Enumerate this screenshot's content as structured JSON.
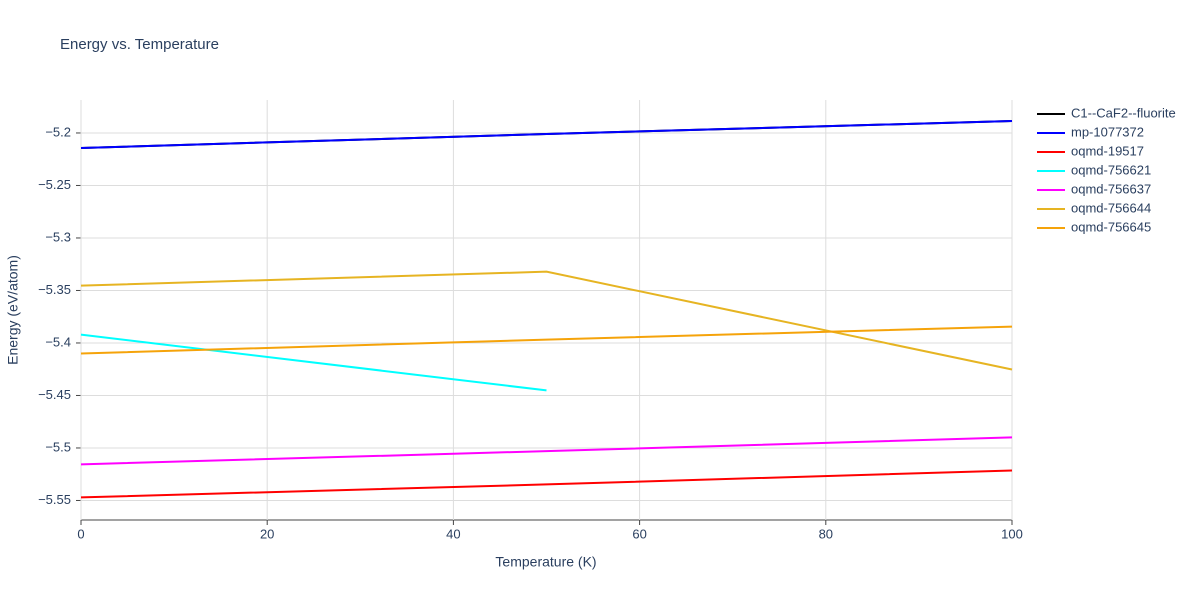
{
  "chart_data": {
    "type": "line",
    "title": "Energy vs. Temperature",
    "x_label": "Temperature (K)",
    "y_label": "Energy (eV/atom)",
    "x": [
      0,
      50,
      100
    ],
    "series": [
      {
        "name": "C1--CaF2--fluorite",
        "color": "#000000",
        "values": [
          -5.2143,
          -5.201,
          -5.1886
        ]
      },
      {
        "name": "mp-1077372",
        "color": "#0000ff",
        "values": [
          -5.2143,
          -5.201,
          -5.1886
        ]
      },
      {
        "name": "oqmd-19517",
        "color": "#ff0000",
        "values": [
          -5.5471,
          -5.5347,
          -5.5214
        ]
      },
      {
        "name": "oqmd-756621",
        "color": "#00ffff",
        "values": [
          -5.392,
          -5.4452,
          null
        ]
      },
      {
        "name": "oqmd-756637",
        "color": "#ff00ff",
        "values": [
          -5.5156,
          -5.503,
          -5.4899
        ]
      },
      {
        "name": "oqmd-756644",
        "color": "#e6b422",
        "values": [
          -5.3454,
          -5.3321,
          -5.4253
        ]
      },
      {
        "name": "oqmd-756645",
        "color": "#f5a30a",
        "values": [
          -5.41,
          -5.3968,
          -5.3844
        ]
      }
    ],
    "xlim": [
      0,
      100
    ],
    "xticks": [
      0,
      20,
      40,
      60,
      80,
      100
    ],
    "ylim": [
      -5.5686,
      -5.1686
    ],
    "yticks": [
      {
        "value": -5.55,
        "label": "−5.55"
      },
      {
        "value": -5.5,
        "label": "−5.5"
      },
      {
        "value": -5.45,
        "label": "−5.45"
      },
      {
        "value": -5.4,
        "label": "−5.4"
      },
      {
        "value": -5.35,
        "label": "−5.35"
      },
      {
        "value": -5.3,
        "label": "−5.3"
      },
      {
        "value": -5.25,
        "label": "−5.25"
      },
      {
        "value": -5.2,
        "label": "−5.2"
      }
    ],
    "grid": true
  }
}
